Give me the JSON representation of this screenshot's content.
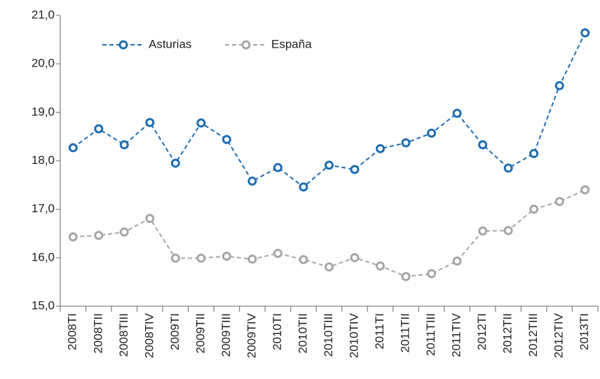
{
  "chart_data": {
    "type": "line",
    "categories": [
      "2008TI",
      "2008TII",
      "2008TIII",
      "2008TIV",
      "2009TI",
      "2009TII",
      "2009TIII",
      "2009TIV",
      "2010TI",
      "2010TII",
      "2010TIII",
      "2010TIV",
      "2011TI",
      "2011TII",
      "2011TIII",
      "2011TIV",
      "2012TI",
      "2012TII",
      "2012TIII",
      "2012TIV",
      "2013TI"
    ],
    "series": [
      {
        "name": "Asturias",
        "color": "#1f6db3",
        "values": [
          18.27,
          18.66,
          18.33,
          18.79,
          17.95,
          18.78,
          18.44,
          17.58,
          17.86,
          17.46,
          17.91,
          17.82,
          18.25,
          18.37,
          18.57,
          18.98,
          18.33,
          17.85,
          18.15,
          19.55,
          20.64
        ]
      },
      {
        "name": "España",
        "color": "#a6a6a6",
        "values": [
          16.43,
          16.46,
          16.53,
          16.81,
          15.99,
          15.99,
          16.03,
          15.97,
          16.09,
          15.96,
          15.81,
          16.0,
          15.83,
          15.61,
          15.67,
          15.93,
          16.55,
          16.56,
          17.0,
          17.16,
          17.4
        ]
      }
    ],
    "ylim": [
      15,
      21
    ],
    "yticks": [
      {
        "value": 15,
        "label": "15,0"
      },
      {
        "value": 16,
        "label": "16,0"
      },
      {
        "value": 17,
        "label": "17,0"
      },
      {
        "value": 18,
        "label": "18,0"
      },
      {
        "value": 19,
        "label": "19,0"
      },
      {
        "value": 20,
        "label": "20,0"
      },
      {
        "value": 21,
        "label": "21,0"
      }
    ],
    "legend": "upper-left",
    "grid": false
  }
}
